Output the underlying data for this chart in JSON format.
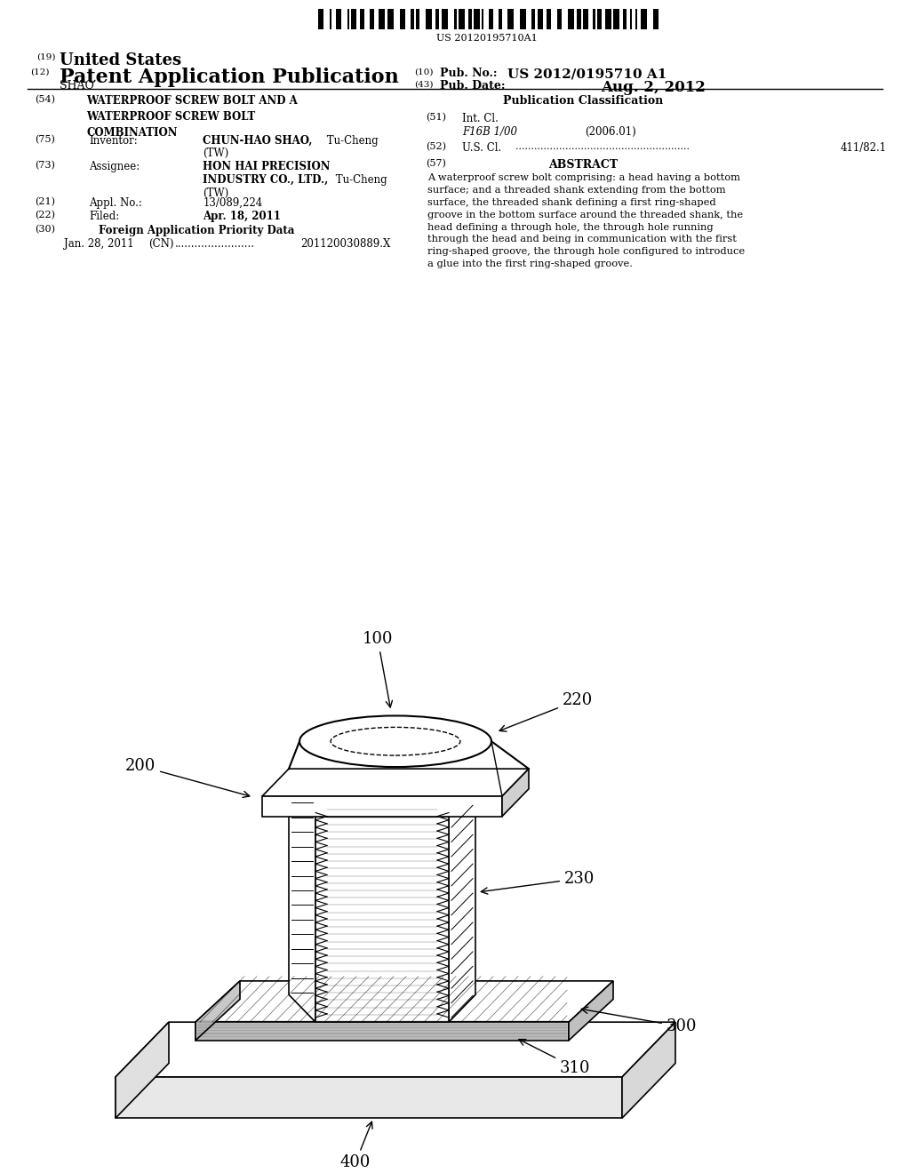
{
  "background_color": "#ffffff",
  "barcode_text": "US 20120195710A1",
  "header_19": "(19)",
  "header_19_text": "United States",
  "header_12": "(12)",
  "header_12_text": "Patent Application Publication",
  "header_shao": "SHAO",
  "header_10": "(10)",
  "header_10_text": "Pub. No.:",
  "header_10_value": "US 2012/0195710 A1",
  "header_43": "(43)",
  "header_43_text": "Pub. Date:",
  "header_43_value": "Aug. 2, 2012",
  "field_54_label": "(54)",
  "field_54_text": "WATERPROOF SCREW BOLT AND A\nWATERPROOF SCREW BOLT\nCOMBINATION",
  "field_75_label": "(75)",
  "field_75_key": "Inventor:",
  "field_75_name_bold": "CHUN-HAO SHAO,",
  "field_75_name_rest": " Tu-Cheng",
  "field_75_tw": "(TW)",
  "field_73_label": "(73)",
  "field_73_key": "Assignee:",
  "field_73_line1_bold": "HON HAI PRECISION",
  "field_73_line2_bold": "INDUSTRY CO., LTD.,",
  "field_73_line2_rest": " Tu-Cheng",
  "field_73_tw": "(TW)",
  "field_21_label": "(21)",
  "field_21_key": "Appl. No.:",
  "field_21_value": "13/089,224",
  "field_22_label": "(22)",
  "field_22_key": "Filed:",
  "field_22_value": "Apr. 18, 2011",
  "field_30_label": "(30)",
  "field_30_key": "Foreign Application Priority Data",
  "field_30_date": "Jan. 28, 2011",
  "field_30_country": "(CN)",
  "field_30_dots": "........................",
  "field_30_number": "201120030889.X",
  "pub_class_title": "Publication Classification",
  "field_51_label": "(51)",
  "field_51_key": "Int. Cl.",
  "field_51_class": "F16B 1/00",
  "field_51_year": "(2006.01)",
  "field_52_label": "(52)",
  "field_52_key": "U.S. Cl.",
  "field_52_dots": "........................................................",
  "field_52_value": "411/82.1",
  "field_57_label": "(57)",
  "field_57_key": "ABSTRACT",
  "field_57_text": "A waterproof screw bolt comprising: a head having a bottom\nsurface; and a threaded shank extending from the bottom\nsurface, the threaded shank defining a first ring-shaped\ngroove in the bottom surface around the threaded shank, the\nhead defining a through hole, the through hole running\nthrough the head and being in communication with the first\nring-shaped groove, the through hole configured to introduce\na glue into the first ring-shaped groove.",
  "diagram_label_100": "100",
  "diagram_label_200": "200",
  "diagram_label_220": "220",
  "diagram_label_230": "230",
  "diagram_label_300": "300",
  "diagram_label_310": "310",
  "diagram_label_400": "400"
}
